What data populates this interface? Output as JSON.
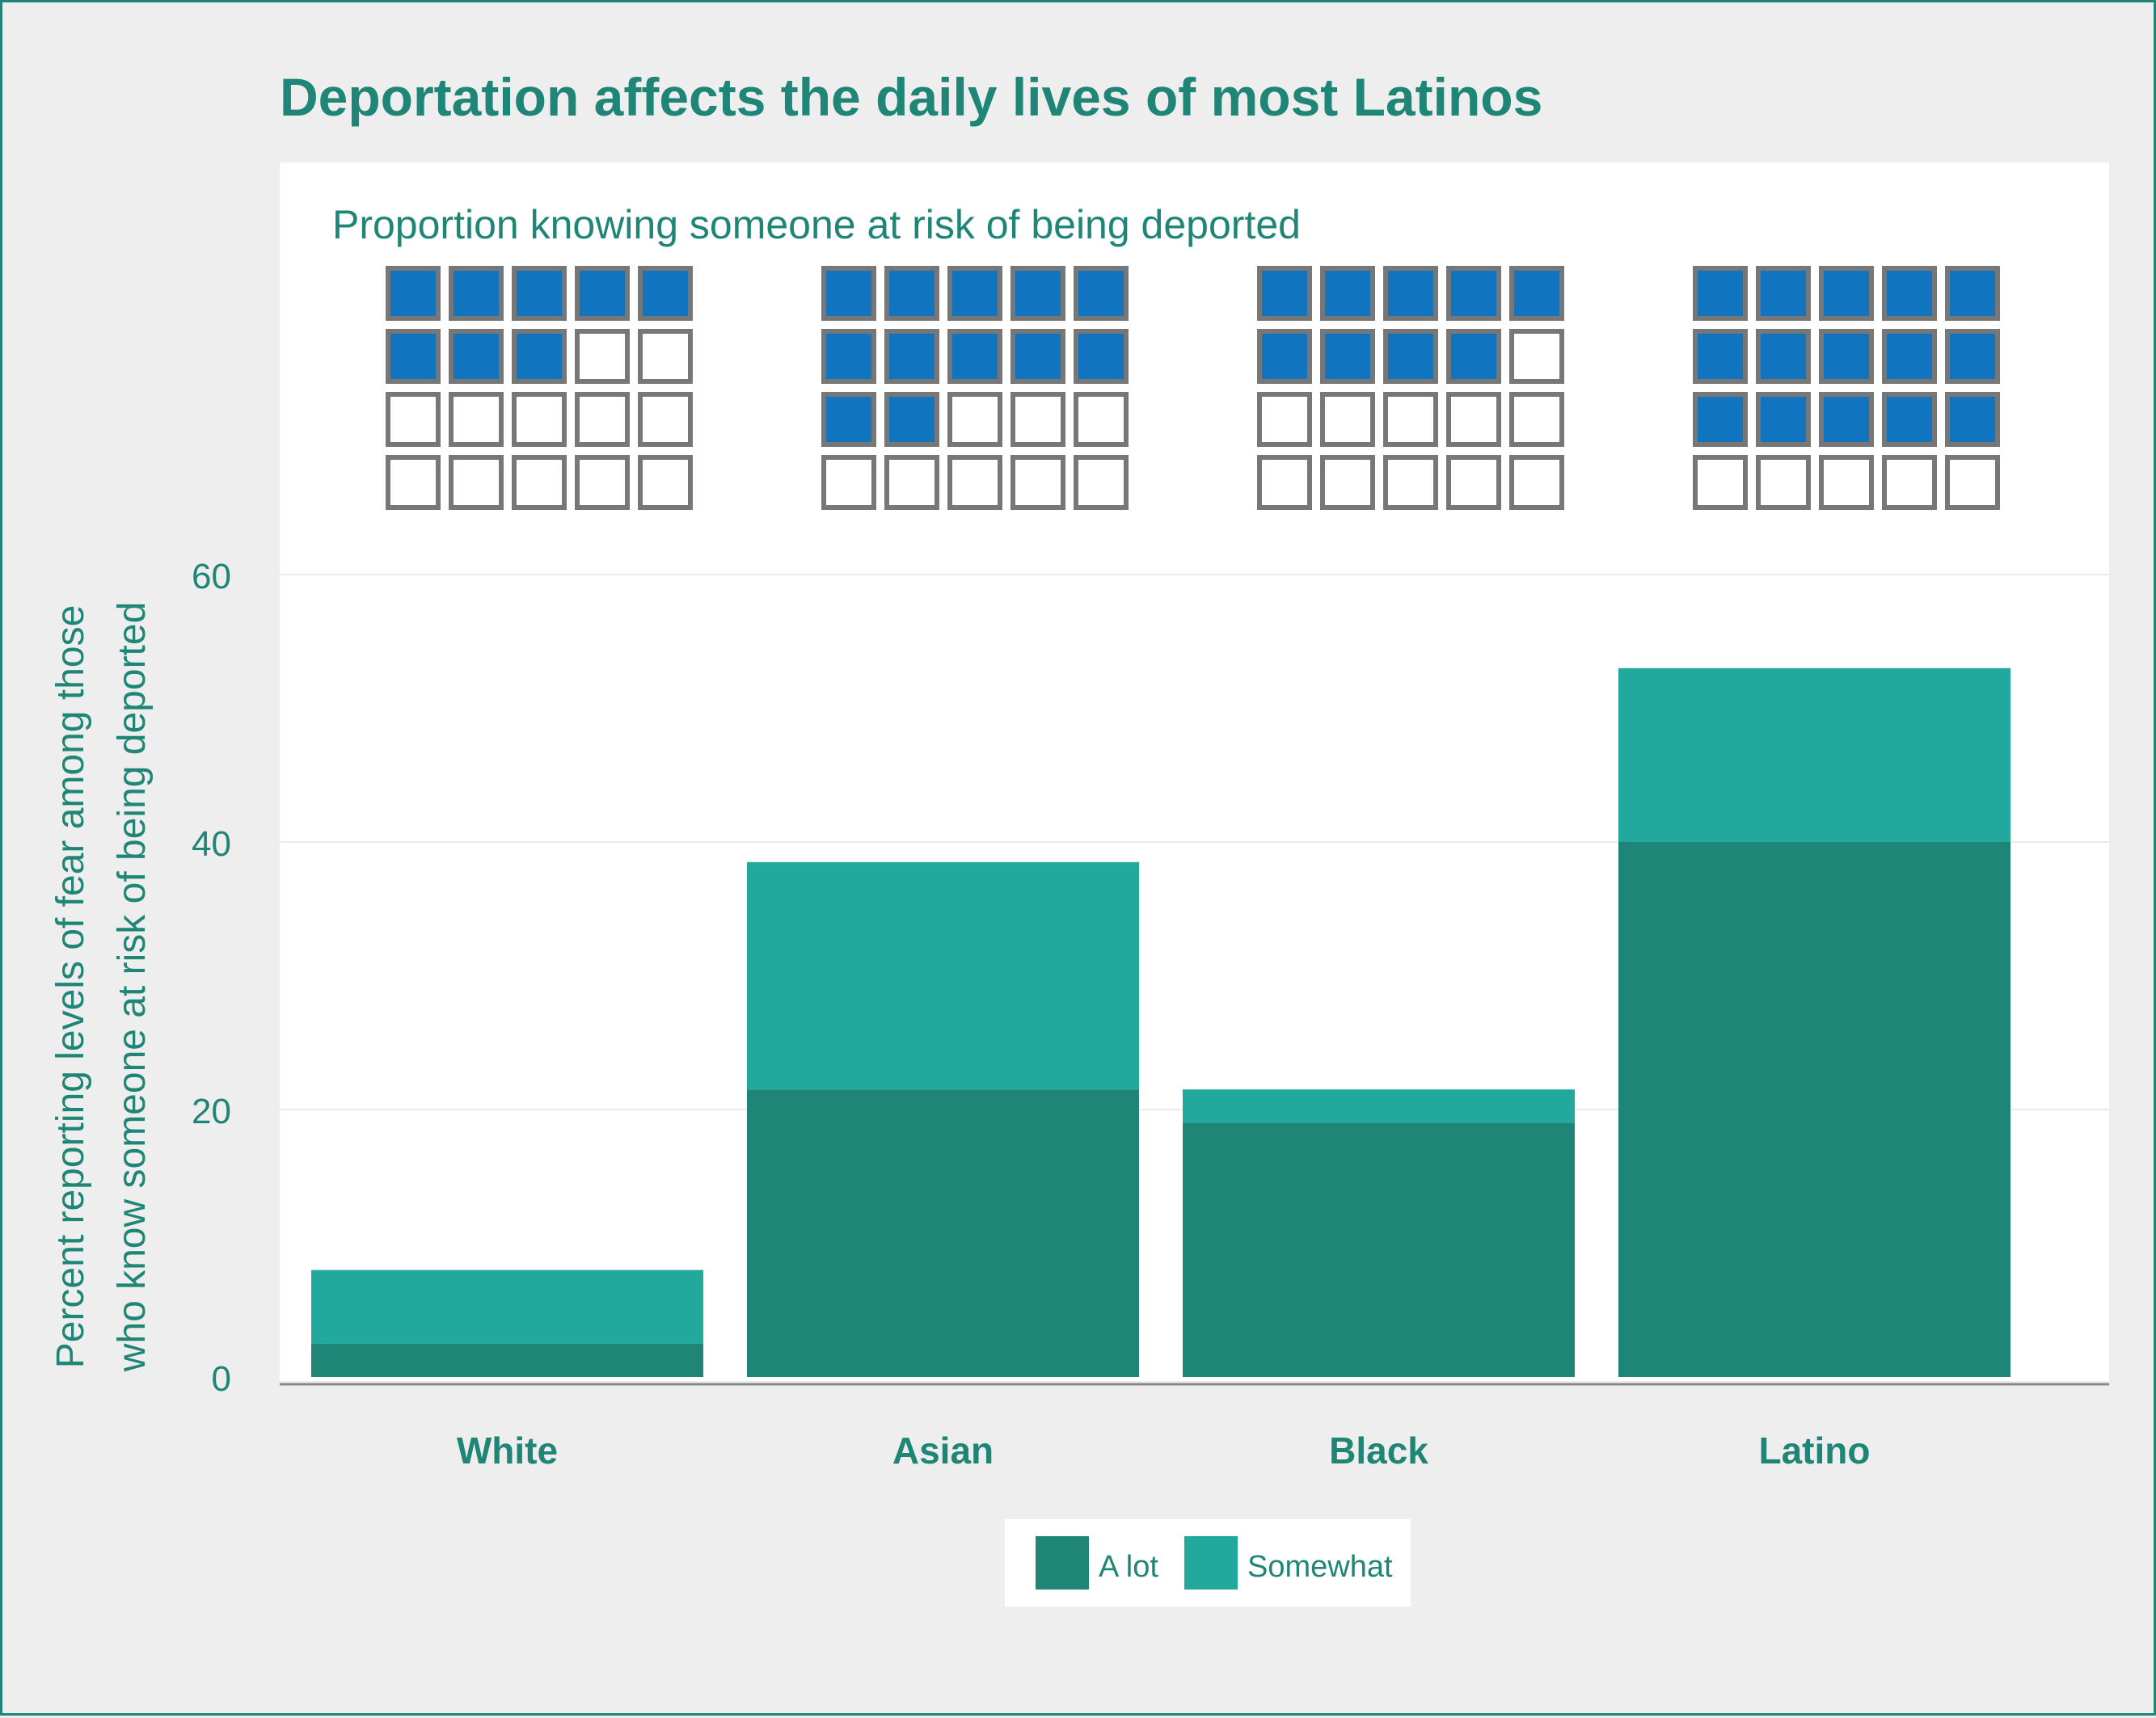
{
  "colors": {
    "background": "#eeeeee",
    "panel": "#ffffff",
    "text": "#1f8577",
    "a_lot": "#1f8577",
    "somewhat": "#22a99e",
    "waffle_filled": "#1074bf",
    "waffle_empty": "#ffffff",
    "waffle_border": "#777777",
    "grid": "#ebebeb",
    "axis": "#888888"
  },
  "chart_data": {
    "type": "bar",
    "stacked": true,
    "title": "Deportation affects the daily lives of most Latinos",
    "ylabel_lines": [
      "Percent reporting levels of fear among those",
      "who know someone at risk of being deported"
    ],
    "categories": [
      "White",
      "Asian",
      "Black",
      "Latino"
    ],
    "series": [
      {
        "name": "A lot",
        "values": [
          2.5,
          21.5,
          19,
          40
        ]
      },
      {
        "name": "Somewhat",
        "values": [
          5.5,
          17,
          2.5,
          13
        ]
      }
    ],
    "ylim": [
      0,
      60
    ],
    "yticks": [
      0,
      20,
      40,
      60
    ],
    "grid": true,
    "legend": "bottom",
    "waffle": {
      "label": "Proportion knowing someone at risk of being deported",
      "rows": 4,
      "cols": 5,
      "filled_counts": [
        8,
        12,
        9,
        15
      ]
    }
  }
}
